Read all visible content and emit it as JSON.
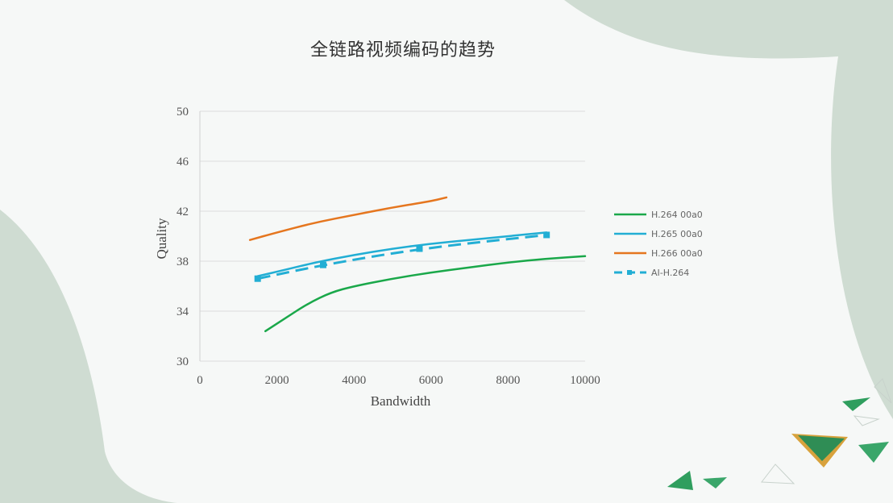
{
  "slide": {
    "title": "全链路视频编码的趋势"
  },
  "chart_data": {
    "type": "line",
    "title": "全链路视频编码的趋势",
    "xlabel": "Bandwidth",
    "ylabel": "Quality",
    "xlim": [
      0,
      10000
    ],
    "ylim": [
      30,
      50
    ],
    "xticks": [
      "0",
      "2000",
      "4000",
      "6000",
      "8000",
      "10000"
    ],
    "yticks": [
      "30",
      "34",
      "38",
      "42",
      "46",
      "50"
    ],
    "grid": true,
    "legend_position": "right",
    "series": [
      {
        "name": "H.264 00a0",
        "color": "#1aa84a",
        "dash": false,
        "x": [
          1700,
          2200,
          2800,
          3400,
          4000,
          5000,
          6000,
          7000,
          8000,
          9000,
          10000
        ],
        "y": [
          32.4,
          33.4,
          34.6,
          35.5,
          36.0,
          36.6,
          37.1,
          37.5,
          37.9,
          38.2,
          38.4
        ]
      },
      {
        "name": "H.265 00a0",
        "color": "#22aed4",
        "dash": false,
        "x": [
          1500,
          2200,
          3000,
          4000,
          5000,
          6000,
          7000,
          8000,
          9000
        ],
        "y": [
          36.8,
          37.3,
          37.9,
          38.5,
          39.0,
          39.4,
          39.7,
          40.0,
          40.3
        ]
      },
      {
        "name": "H.266 00a0",
        "color": "#e5761f",
        "dash": false,
        "x": [
          1300,
          2000,
          3000,
          4000,
          5000,
          6000,
          6400
        ],
        "y": [
          39.7,
          40.3,
          41.1,
          41.7,
          42.3,
          42.8,
          43.1
        ]
      },
      {
        "name": "AI-H.264",
        "color": "#22aed4",
        "dash": true,
        "x": [
          1500,
          3200,
          5700,
          9000
        ],
        "y": [
          36.6,
          37.7,
          39.0,
          40.1
        ]
      }
    ]
  }
}
